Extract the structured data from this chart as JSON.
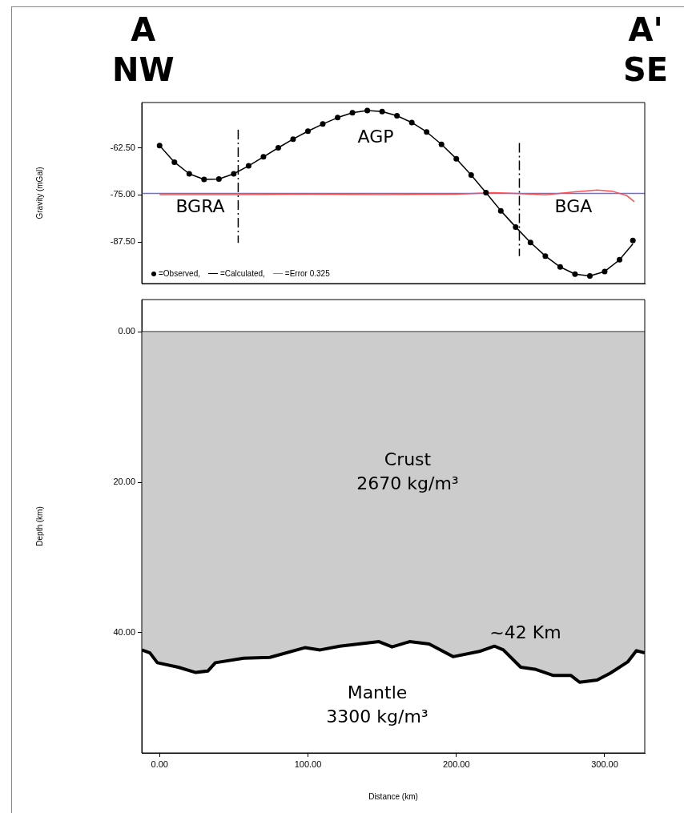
{
  "chart_data": [
    {
      "type": "line",
      "ylabel": "Gravity (mGal)",
      "xlim": [
        -12,
        327
      ],
      "ylim": [
        -98.5,
        -50.5
      ],
      "yticks": [
        {
          "value": -62.5,
          "label": "-62.50"
        },
        {
          "value": -75,
          "label": "-75.00"
        },
        {
          "value": -87.5,
          "label": "-87.50"
        }
      ],
      "tick_labels": "y",
      "grid": false,
      "legend": "bottom left",
      "annotations": [
        "A",
        "NW",
        "A'",
        "SE",
        "BGRA",
        "AGP",
        "BGA"
      ],
      "ref_lines": [
        {
          "axis": "y",
          "value": -74.6,
          "color": "#6a6aff"
        }
      ],
      "series": [
        {
          "name": "=Calculated,",
          "type": "line",
          "color": "#000000",
          "x": [
            0,
            10,
            20,
            30,
            40,
            50,
            60,
            70,
            80,
            90,
            100,
            110,
            120,
            130,
            140,
            150,
            160,
            170,
            180,
            190,
            200,
            210,
            220,
            230,
            240,
            250,
            260,
            270,
            280,
            290,
            300,
            310,
            319
          ],
          "values": [
            -61.9,
            -66.3,
            -69.4,
            -70.9,
            -70.8,
            -69.4,
            -67.3,
            -64.9,
            -62.5,
            -60.2,
            -58.1,
            -56.2,
            -54.5,
            -53.2,
            -52.6,
            -52.9,
            -54.0,
            -55.8,
            -58.3,
            -61.6,
            -65.4,
            -69.7,
            -74.4,
            -79.2,
            -83.5,
            -87.6,
            -91.2,
            -94.1,
            -96.0,
            -96.5,
            -95.3,
            -92.2,
            -88.0
          ]
        },
        {
          "name": "=Error 0.325",
          "type": "line",
          "color": "#ff5050",
          "x": [
            0,
            50,
            100,
            150,
            200,
            225,
            240,
            260,
            280,
            295,
            305,
            315,
            320
          ],
          "values": [
            -74.9,
            -74.9,
            -74.8,
            -74.9,
            -74.8,
            -74.4,
            -74.6,
            -75.0,
            -74.2,
            -73.7,
            -74.0,
            -75.2,
            -76.8
          ]
        },
        {
          "name": "=Observed,",
          "type": "scatter",
          "marker": "circle",
          "color": "#000000",
          "x": [
            0,
            10,
            20,
            30,
            40,
            50,
            60,
            70,
            80,
            90,
            100,
            110,
            120,
            130,
            140,
            150,
            160,
            170,
            180,
            190,
            200,
            210,
            220,
            230,
            240,
            250,
            260,
            270,
            280,
            290,
            300,
            310,
            319
          ],
          "values": [
            -61.9,
            -66.3,
            -69.4,
            -70.9,
            -70.8,
            -69.4,
            -67.3,
            -64.9,
            -62.5,
            -60.2,
            -58.1,
            -56.2,
            -54.5,
            -53.2,
            -52.6,
            -52.9,
            -54.0,
            -55.8,
            -58.3,
            -61.6,
            -65.4,
            -69.7,
            -74.4,
            -79.2,
            -83.5,
            -87.6,
            -91.2,
            -94.1,
            -96.0,
            -96.5,
            -95.3,
            -92.2,
            -87.1
          ]
        },
        {
          "type": "line",
          "line_style": "dashed",
          "color": "#000000",
          "x": [
            53,
            53
          ],
          "values": [
            -57.7,
            -87.7
          ]
        },
        {
          "type": "line",
          "line_style": "dashed",
          "color": "#000000",
          "x": [
            242.5,
            242.5
          ],
          "values": [
            -61.2,
            -91.2
          ]
        }
      ]
    },
    {
      "type": "area",
      "xlabel": "Distance (km)",
      "ylabel": "Depth (km)",
      "xlim": [
        -12,
        327
      ],
      "ylim": [
        56,
        -4.3
      ],
      "xticks": [
        {
          "value": 0,
          "label": "0.00"
        },
        {
          "value": 100,
          "label": "100.00"
        },
        {
          "value": 200,
          "label": "200.00"
        },
        {
          "value": 300,
          "label": "300.00"
        }
      ],
      "yticks": [
        {
          "value": 0,
          "label": "0.00"
        },
        {
          "value": 20,
          "label": "20.00"
        },
        {
          "value": 40,
          "label": "40.00"
        }
      ],
      "grid": false,
      "legend": false,
      "annotations": [
        "Crust\n2670 kg/m³",
        "~42 Km",
        "Mantle\n3300 kg/m³"
      ],
      "ref_lines": [
        {
          "axis": "y",
          "value": 0,
          "color": "#000000"
        }
      ],
      "x": [
        -12,
        -6.5,
        -1.5,
        12.6,
        24.4,
        32.6,
        37.6,
        56.7,
        74.3,
        97.9,
        108.2,
        121.4,
        147.9,
        156.7,
        168.5,
        181.7,
        197.8,
        215.5,
        225.8,
        231.7,
        243.4,
        253.7,
        265.5,
        277.3,
        283.1,
        294.9,
        303.7,
        315.5,
        321.4,
        327
      ],
      "series": [
        {
          "color": "#cccccc",
          "values": [
            42.3,
            42.7,
            44.0,
            44.6,
            45.3,
            45.1,
            44.0,
            43.4,
            43.3,
            42.0,
            42.3,
            41.8,
            41.2,
            41.9,
            41.2,
            41.5,
            43.2,
            42.5,
            41.8,
            42.3,
            44.6,
            44.9,
            45.7,
            45.7,
            46.6,
            46.3,
            45.4,
            43.9,
            42.4,
            42.7
          ]
        }
      ]
    }
  ]
}
